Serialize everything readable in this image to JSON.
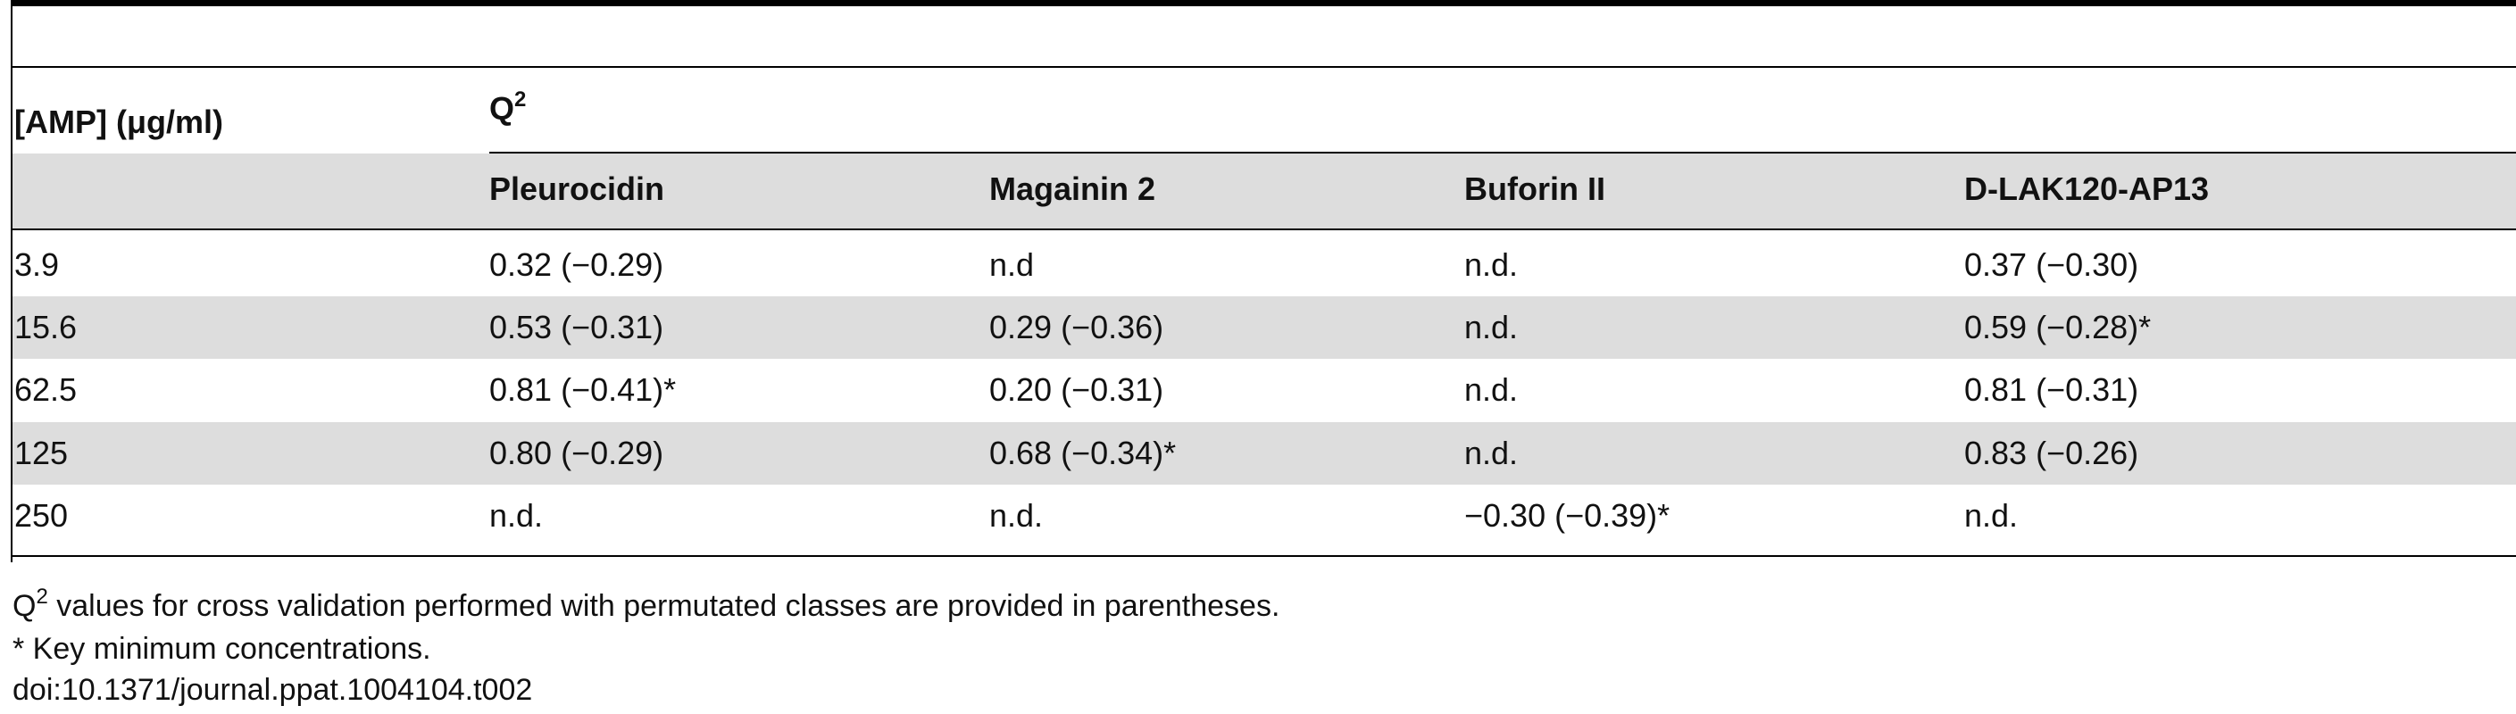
{
  "table": {
    "header": {
      "row_label": "[AMP] (μg/ml)",
      "group_label": "Q",
      "group_label_sup": "2",
      "columns": [
        "Pleurocidin",
        "Magainin 2",
        "Buforin II",
        "D-LAK120-AP13"
      ]
    },
    "rows": [
      {
        "amp": "3.9",
        "cells": [
          "0.32 (−0.29)",
          "n.d",
          "n.d.",
          "0.37 (−0.30)"
        ]
      },
      {
        "amp": "15.6",
        "cells": [
          "0.53 (−0.31)",
          "0.29 (−0.36)",
          "n.d.",
          "0.59 (−0.28)*"
        ]
      },
      {
        "amp": "62.5",
        "cells": [
          "0.81 (−0.41)*",
          "0.20 (−0.31)",
          "n.d.",
          "0.81 (−0.31)"
        ]
      },
      {
        "amp": "125",
        "cells": [
          "0.80 (−0.29)",
          "0.68 (−0.34)*",
          "n.d.",
          "0.83 (−0.26)"
        ]
      },
      {
        "amp": "250",
        "cells": [
          "n.d.",
          "n.d.",
          "−0.30 (−0.39)*",
          "n.d."
        ]
      }
    ]
  },
  "footnotes": {
    "q2_prefix": "Q",
    "q2_sup": "2",
    "q2_text": " values for cross validation performed with permutated classes are provided in parentheses.",
    "key": "* Key minimum concentrations.",
    "doi": "doi:10.1371/journal.ppat.1004104.t002"
  },
  "colors": {
    "band": "#dddddd",
    "rule": "#000000",
    "text": "#111111"
  }
}
